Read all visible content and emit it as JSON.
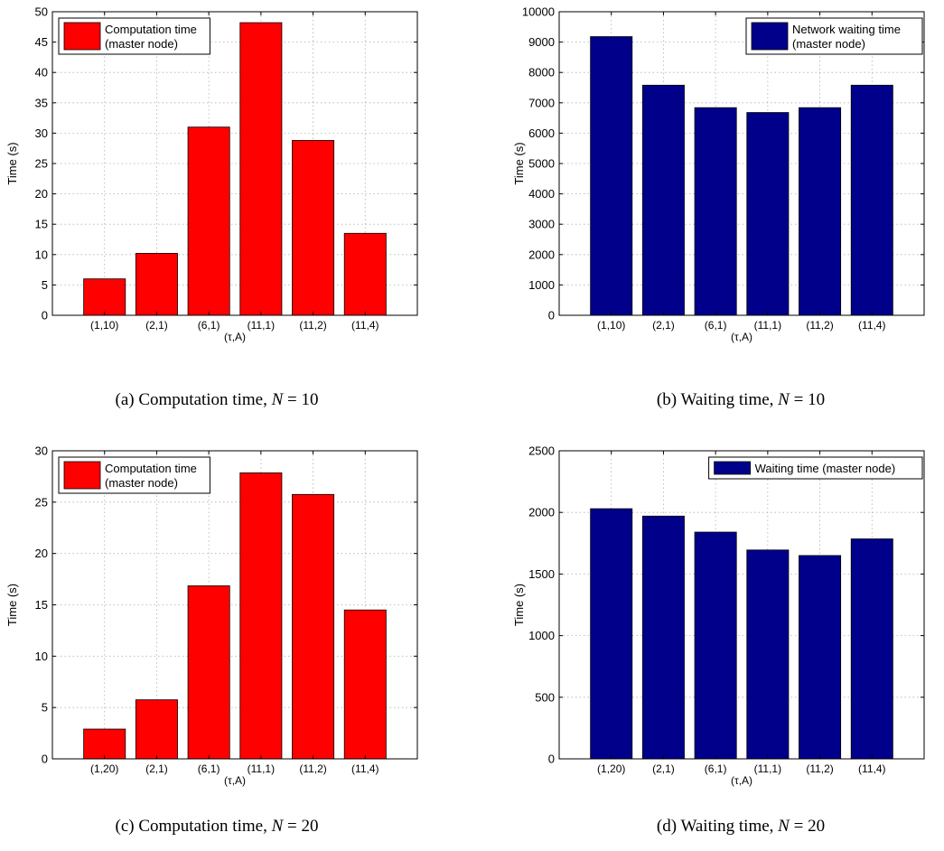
{
  "chart_data": [
    {
      "type": "bar",
      "panel": "a",
      "categories": [
        "(1,10)",
        "(2,1)",
        "(6,1)",
        "(11,1)",
        "(11,2)",
        "(11,4)"
      ],
      "values": [
        6,
        10.2,
        31,
        48.2,
        28.8,
        13.5
      ],
      "xlabel": "(τ,A)",
      "ylabel": "Time (s)",
      "ylim": [
        0,
        50
      ],
      "yticks": [
        0,
        5,
        10,
        15,
        20,
        25,
        30,
        35,
        40,
        45,
        50
      ],
      "grid": true,
      "bar_color": "#ff0000",
      "legend": {
        "position": "top-left",
        "lines": [
          "Computation time",
          "(master node)"
        ]
      },
      "caption": {
        "prefix": "(a) Computation time, ",
        "math_var": "N",
        "math_rest": " = 10"
      }
    },
    {
      "type": "bar",
      "panel": "b",
      "categories": [
        "(1,10)",
        "(2,1)",
        "(6,1)",
        "(11,1)",
        "(11,2)",
        "(11,4)"
      ],
      "values": [
        9180,
        7580,
        6840,
        6680,
        6840,
        7580
      ],
      "xlabel": "(τ,A)",
      "ylabel": "Time (s)",
      "ylim": [
        0,
        10000
      ],
      "yticks": [
        0,
        1000,
        2000,
        3000,
        4000,
        5000,
        6000,
        7000,
        8000,
        9000,
        10000
      ],
      "grid": true,
      "bar_color": "#00008b",
      "legend": {
        "position": "top-right",
        "lines": [
          "Network waiting time",
          "(master node)"
        ]
      },
      "caption": {
        "prefix": "(b) Waiting time, ",
        "math_var": "N",
        "math_rest": " = 10"
      }
    },
    {
      "type": "bar",
      "panel": "c",
      "categories": [
        "(1,20)",
        "(2,1)",
        "(6,1)",
        "(11,1)",
        "(11,2)",
        "(11,4)"
      ],
      "values": [
        2.9,
        5.75,
        16.85,
        27.85,
        25.75,
        14.5
      ],
      "xlabel": "(τ,A)",
      "ylabel": "Time (s)",
      "ylim": [
        0,
        30
      ],
      "yticks": [
        0,
        5,
        10,
        15,
        20,
        25,
        30
      ],
      "grid": true,
      "bar_color": "#ff0000",
      "legend": {
        "position": "top-left",
        "lines": [
          "Computation time",
          "(master node)"
        ]
      },
      "caption": {
        "prefix": "(c) Computation time, ",
        "math_var": "N",
        "math_rest": " = 20"
      }
    },
    {
      "type": "bar",
      "panel": "d",
      "categories": [
        "(1,20)",
        "(2,1)",
        "(6,1)",
        "(11,1)",
        "(11,2)",
        "(11,4)"
      ],
      "values": [
        2030,
        1970,
        1840,
        1695,
        1650,
        1785
      ],
      "xlabel": "(τ,A)",
      "ylabel": "Time (s)",
      "ylim": [
        0,
        2500
      ],
      "yticks": [
        0,
        500,
        1000,
        1500,
        2000,
        2500
      ],
      "grid": true,
      "bar_color": "#00008b",
      "legend": {
        "position": "top-right",
        "lines": [
          "Waiting time (master node)"
        ]
      },
      "caption": {
        "prefix": "(d) Waiting time, ",
        "math_var": "N",
        "math_rest": " = 20"
      }
    }
  ]
}
